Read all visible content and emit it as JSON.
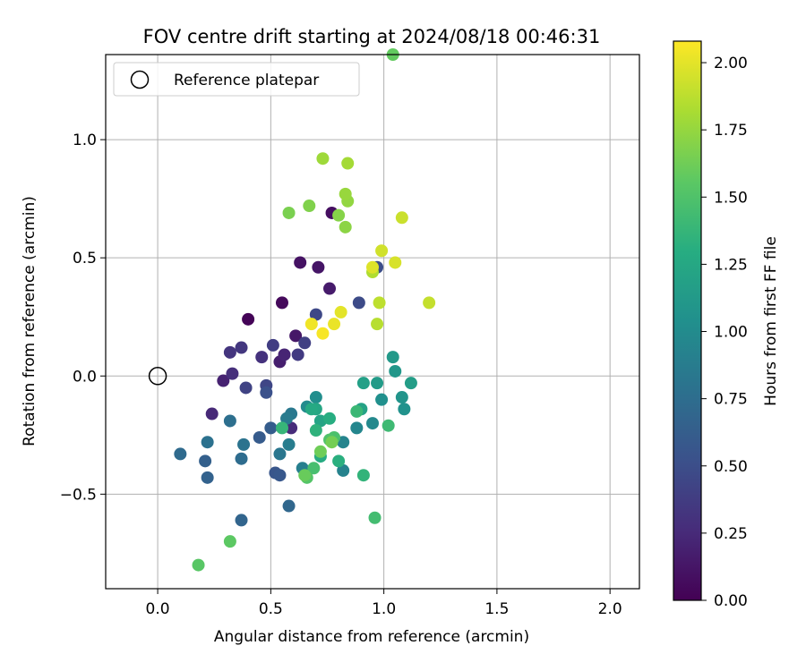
{
  "chart_data": {
    "type": "scatter",
    "title": "FOV centre drift starting at 2024/08/18 00:46:31",
    "xlabel": "Angular distance from reference (arcmin)",
    "ylabel": "Rotation from reference (arcmin)",
    "xlim": [
      -0.23,
      2.13
    ],
    "ylim": [
      -0.9,
      1.36
    ],
    "grid": true,
    "x_ticks": [
      0.0,
      0.5,
      1.0,
      1.5,
      2.0
    ],
    "x_tick_labels": [
      "0.0",
      "0.5",
      "1.0",
      "1.5",
      "2.0"
    ],
    "y_ticks": [
      -0.5,
      0.0,
      0.5,
      1.0
    ],
    "y_tick_labels": [
      "−0.5",
      "0.0",
      "0.5",
      "1.0"
    ],
    "legend": {
      "position": "top-left",
      "entries": [
        {
          "label": "Reference platepar",
          "marker": "open-circle"
        }
      ]
    },
    "reference_point": {
      "x": 0.0,
      "y": 0.0
    },
    "colorbar": {
      "label": "Hours from first FF file",
      "colormap": "viridis",
      "range": [
        0.0,
        2.08
      ],
      "ticks": [
        0.0,
        0.25,
        0.5,
        0.75,
        1.0,
        1.25,
        1.5,
        1.75,
        2.0
      ],
      "tick_labels": [
        "0.00",
        "0.25",
        "0.50",
        "0.75",
        "1.00",
        "1.25",
        "1.50",
        "1.75",
        "2.00"
      ]
    },
    "points": [
      {
        "x": 0.4,
        "y": 0.24,
        "h": 0.02
      },
      {
        "x": 0.55,
        "y": 0.31,
        "h": 0.05
      },
      {
        "x": 0.77,
        "y": 0.69,
        "h": 0.08
      },
      {
        "x": 0.63,
        "y": 0.48,
        "h": 0.1
      },
      {
        "x": 0.71,
        "y": 0.46,
        "h": 0.12
      },
      {
        "x": 0.61,
        "y": 0.17,
        "h": 0.14
      },
      {
        "x": 0.76,
        "y": 0.37,
        "h": 0.16
      },
      {
        "x": 0.54,
        "y": 0.06,
        "h": 0.18
      },
      {
        "x": 0.29,
        "y": -0.02,
        "h": 0.2
      },
      {
        "x": 0.56,
        "y": 0.09,
        "h": 0.22
      },
      {
        "x": 0.24,
        "y": -0.16,
        "h": 0.24
      },
      {
        "x": 0.59,
        "y": -0.22,
        "h": 0.26
      },
      {
        "x": 0.33,
        "y": 0.01,
        "h": 0.28
      },
      {
        "x": 0.46,
        "y": 0.08,
        "h": 0.3
      },
      {
        "x": 0.32,
        "y": 0.1,
        "h": 0.32
      },
      {
        "x": 0.37,
        "y": 0.12,
        "h": 0.34
      },
      {
        "x": 0.62,
        "y": 0.09,
        "h": 0.36
      },
      {
        "x": 0.51,
        "y": 0.13,
        "h": 0.38
      },
      {
        "x": 0.65,
        "y": 0.14,
        "h": 0.4
      },
      {
        "x": 0.39,
        "y": -0.05,
        "h": 0.42
      },
      {
        "x": 0.48,
        "y": -0.04,
        "h": 0.44
      },
      {
        "x": 0.7,
        "y": 0.26,
        "h": 0.46
      },
      {
        "x": 0.89,
        "y": 0.31,
        "h": 0.48
      },
      {
        "x": 0.97,
        "y": 0.46,
        "h": 0.5
      },
      {
        "x": 0.48,
        "y": -0.07,
        "h": 0.52
      },
      {
        "x": 0.52,
        "y": -0.41,
        "h": 0.56
      },
      {
        "x": 0.54,
        "y": -0.42,
        "h": 0.58
      },
      {
        "x": 0.45,
        "y": -0.26,
        "h": 0.6
      },
      {
        "x": 0.5,
        "y": -0.22,
        "h": 0.62
      },
      {
        "x": 0.21,
        "y": -0.36,
        "h": 0.64
      },
      {
        "x": 0.22,
        "y": -0.43,
        "h": 0.66
      },
      {
        "x": 0.37,
        "y": -0.61,
        "h": 0.68
      },
      {
        "x": 0.58,
        "y": -0.55,
        "h": 0.7
      },
      {
        "x": 0.1,
        "y": -0.33,
        "h": 0.72
      },
      {
        "x": 0.37,
        "y": -0.35,
        "h": 0.74
      },
      {
        "x": 0.32,
        "y": -0.19,
        "h": 0.76
      },
      {
        "x": 0.22,
        "y": -0.28,
        "h": 0.78
      },
      {
        "x": 0.38,
        "y": -0.29,
        "h": 0.8
      },
      {
        "x": 0.54,
        "y": -0.33,
        "h": 0.82
      },
      {
        "x": 0.59,
        "y": -0.16,
        "h": 0.84
      },
      {
        "x": 0.57,
        "y": -0.18,
        "h": 0.86
      },
      {
        "x": 0.58,
        "y": -0.29,
        "h": 0.88
      },
      {
        "x": 0.64,
        "y": -0.39,
        "h": 0.9
      },
      {
        "x": 0.82,
        "y": -0.4,
        "h": 0.92
      },
      {
        "x": 0.82,
        "y": -0.28,
        "h": 0.94
      },
      {
        "x": 0.88,
        "y": -0.22,
        "h": 0.96
      },
      {
        "x": 0.95,
        "y": -0.2,
        "h": 0.98
      },
      {
        "x": 0.66,
        "y": -0.13,
        "h": 1.0
      },
      {
        "x": 0.7,
        "y": -0.09,
        "h": 1.02
      },
      {
        "x": 0.99,
        "y": -0.1,
        "h": 1.04
      },
      {
        "x": 1.09,
        "y": -0.14,
        "h": 1.06
      },
      {
        "x": 1.08,
        "y": -0.09,
        "h": 1.08
      },
      {
        "x": 1.05,
        "y": 0.02,
        "h": 1.1
      },
      {
        "x": 1.04,
        "y": 0.08,
        "h": 1.12
      },
      {
        "x": 0.97,
        "y": -0.03,
        "h": 1.14
      },
      {
        "x": 1.12,
        "y": -0.03,
        "h": 1.16
      },
      {
        "x": 0.91,
        "y": -0.03,
        "h": 1.18
      },
      {
        "x": 0.9,
        "y": -0.14,
        "h": 1.2
      },
      {
        "x": 0.72,
        "y": -0.19,
        "h": 1.22
      },
      {
        "x": 0.7,
        "y": -0.14,
        "h": 1.24
      },
      {
        "x": 0.68,
        "y": -0.14,
        "h": 1.26
      },
      {
        "x": 0.72,
        "y": -0.34,
        "h": 1.28
      },
      {
        "x": 0.76,
        "y": -0.18,
        "h": 1.3
      },
      {
        "x": 0.8,
        "y": -0.36,
        "h": 1.32
      },
      {
        "x": 0.7,
        "y": -0.23,
        "h": 1.34
      },
      {
        "x": 0.91,
        "y": -0.42,
        "h": 1.36
      },
      {
        "x": 0.55,
        "y": -0.22,
        "h": 1.38
      },
      {
        "x": 0.88,
        "y": -0.15,
        "h": 1.4
      },
      {
        "x": 1.02,
        "y": -0.21,
        "h": 1.42
      },
      {
        "x": 0.96,
        "y": -0.6,
        "h": 1.44
      },
      {
        "x": 0.69,
        "y": -0.39,
        "h": 1.46
      },
      {
        "x": 0.78,
        "y": -0.26,
        "h": 1.48
      },
      {
        "x": 0.76,
        "y": -0.27,
        "h": 1.5
      },
      {
        "x": 0.66,
        "y": -0.43,
        "h": 1.52
      },
      {
        "x": 0.18,
        "y": -0.8,
        "h": 1.54
      },
      {
        "x": 0.32,
        "y": -0.7,
        "h": 1.56
      },
      {
        "x": 1.04,
        "y": 1.36,
        "h": 1.58
      },
      {
        "x": 0.65,
        "y": -0.42,
        "h": 1.6
      },
      {
        "x": 0.72,
        "y": -0.32,
        "h": 1.62
      },
      {
        "x": 0.77,
        "y": -0.28,
        "h": 1.64
      },
      {
        "x": 0.58,
        "y": 0.69,
        "h": 1.66
      },
      {
        "x": 0.67,
        "y": 0.72,
        "h": 1.68
      },
      {
        "x": 0.8,
        "y": 0.68,
        "h": 1.7
      },
      {
        "x": 0.83,
        "y": 0.63,
        "h": 1.72
      },
      {
        "x": 0.84,
        "y": 0.74,
        "h": 1.74
      },
      {
        "x": 0.83,
        "y": 0.77,
        "h": 1.76
      },
      {
        "x": 0.73,
        "y": 0.92,
        "h": 1.78
      },
      {
        "x": 0.84,
        "y": 0.9,
        "h": 1.8
      },
      {
        "x": 0.95,
        "y": 0.44,
        "h": 1.84
      },
      {
        "x": 0.97,
        "y": 0.22,
        "h": 1.86
      },
      {
        "x": 0.98,
        "y": 0.31,
        "h": 1.88
      },
      {
        "x": 1.2,
        "y": 0.31,
        "h": 1.9
      },
      {
        "x": 1.08,
        "y": 0.67,
        "h": 1.92
      },
      {
        "x": 0.99,
        "y": 0.53,
        "h": 1.94
      },
      {
        "x": 1.05,
        "y": 0.48,
        "h": 1.96
      },
      {
        "x": 0.95,
        "y": 0.46,
        "h": 1.98
      },
      {
        "x": 0.81,
        "y": 0.27,
        "h": 2.0
      },
      {
        "x": 0.78,
        "y": 0.22,
        "h": 2.02
      },
      {
        "x": 0.68,
        "y": 0.22,
        "h": 2.04
      },
      {
        "x": 0.73,
        "y": 0.18,
        "h": 2.06
      }
    ]
  }
}
